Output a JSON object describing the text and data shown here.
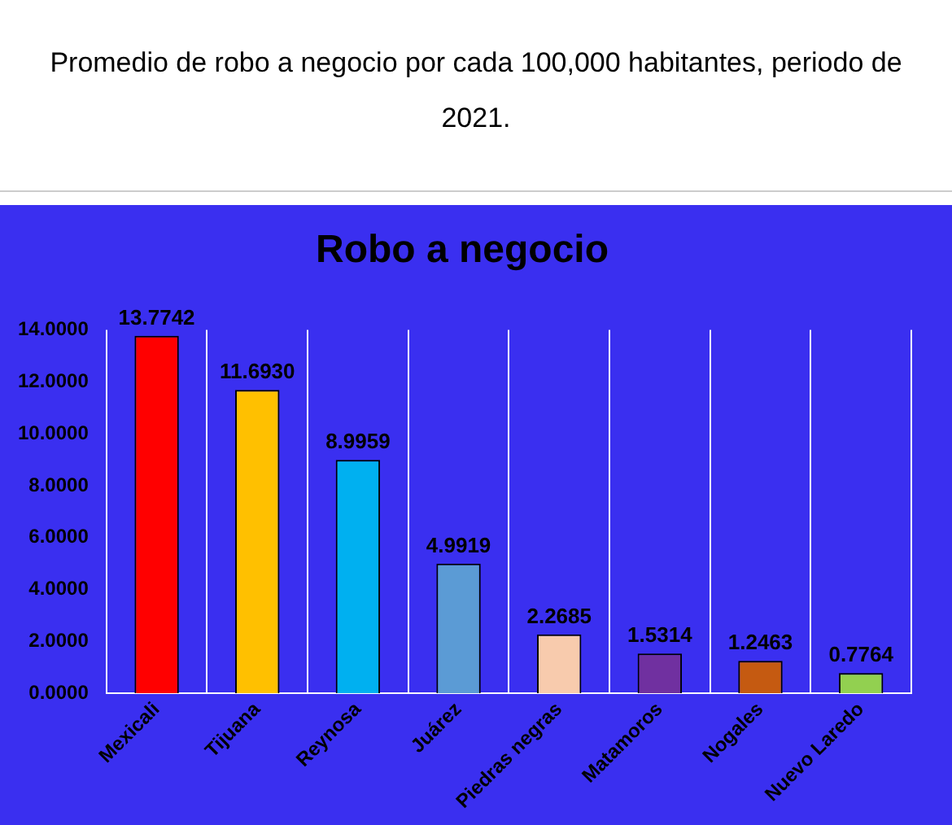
{
  "chart_data": {
    "type": "bar",
    "title": "Robo a negocio",
    "subtitle": "Promedio de robo a negocio por cada 100,000 habitantes, periodo de 2021.",
    "categories": [
      "Mexicali",
      "Tijuana",
      "Reynosa",
      "Juárez",
      "Piedras negras",
      "Matamoros",
      "Nogales",
      "Nuevo Laredo"
    ],
    "values": [
      13.7742,
      11.693,
      8.9959,
      4.9919,
      2.2685,
      1.5314,
      1.2463,
      0.7764
    ],
    "value_labels": [
      "13.7742",
      "11.6930",
      "8.9959",
      "4.9919",
      "2.2685",
      "1.5314",
      "1.2463",
      "0.7764"
    ],
    "colors": [
      "#ff0000",
      "#ffc000",
      "#00b0f0",
      "#5b9bd5",
      "#f8cbad",
      "#7030a0",
      "#c55a11",
      "#92d050"
    ],
    "ylim": [
      0,
      14
    ],
    "yticks": [
      {
        "value": 0,
        "label": "0.0000"
      },
      {
        "value": 2,
        "label": "2.0000"
      },
      {
        "value": 4,
        "label": "4.0000"
      },
      {
        "value": 6,
        "label": "6.0000"
      },
      {
        "value": 8,
        "label": "8.0000"
      },
      {
        "value": 10,
        "label": "10.0000"
      },
      {
        "value": 12,
        "label": "12.0000"
      },
      {
        "value": 14,
        "label": "14.0000"
      }
    ],
    "grid": "x",
    "legend": false
  }
}
